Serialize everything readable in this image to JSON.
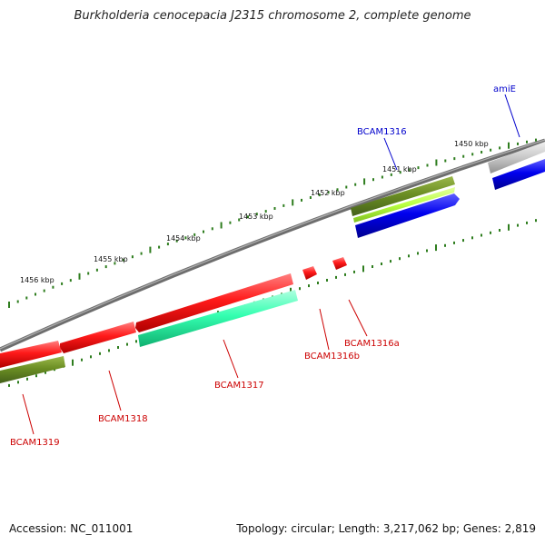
{
  "title": "Burkholderia cenocepacia J2315 chromosome 2, complete genome",
  "footer": {
    "accession": "Accession: NC_011001",
    "genome_info": "Topology: circular; Length: 3,217,062 bp; Genes: 2,819"
  },
  "scale_labels": [
    "1450 kbp",
    "1451 kbp",
    "1452 kbp",
    "1453 kbp",
    "1454 kbp",
    "1455 kbp",
    "1456 kbp"
  ],
  "genes": [
    {
      "name": "amiE",
      "color": "#0000cc"
    },
    {
      "name": "BCAM1316",
      "color": "#0000cc"
    },
    {
      "name": "BCAM1316a",
      "color": "#cc0000"
    },
    {
      "name": "BCAM1316b",
      "color": "#cc0000"
    },
    {
      "name": "BCAM1317",
      "color": "#cc0000"
    },
    {
      "name": "BCAM1318",
      "color": "#cc0000"
    },
    {
      "name": "BCAM1319",
      "color": "#cc0000"
    }
  ],
  "colors": {
    "backbone": "#7a7a7a",
    "tick": "#2e7d1e",
    "red_gene": "#ff1a1a",
    "blue_gene": "#0a0ae6",
    "olive_gene": "#6b8e23",
    "lime_gene": "#b8ff40",
    "teal_gene": "#33ffb0",
    "gray_gene": "#bdbdbd"
  }
}
